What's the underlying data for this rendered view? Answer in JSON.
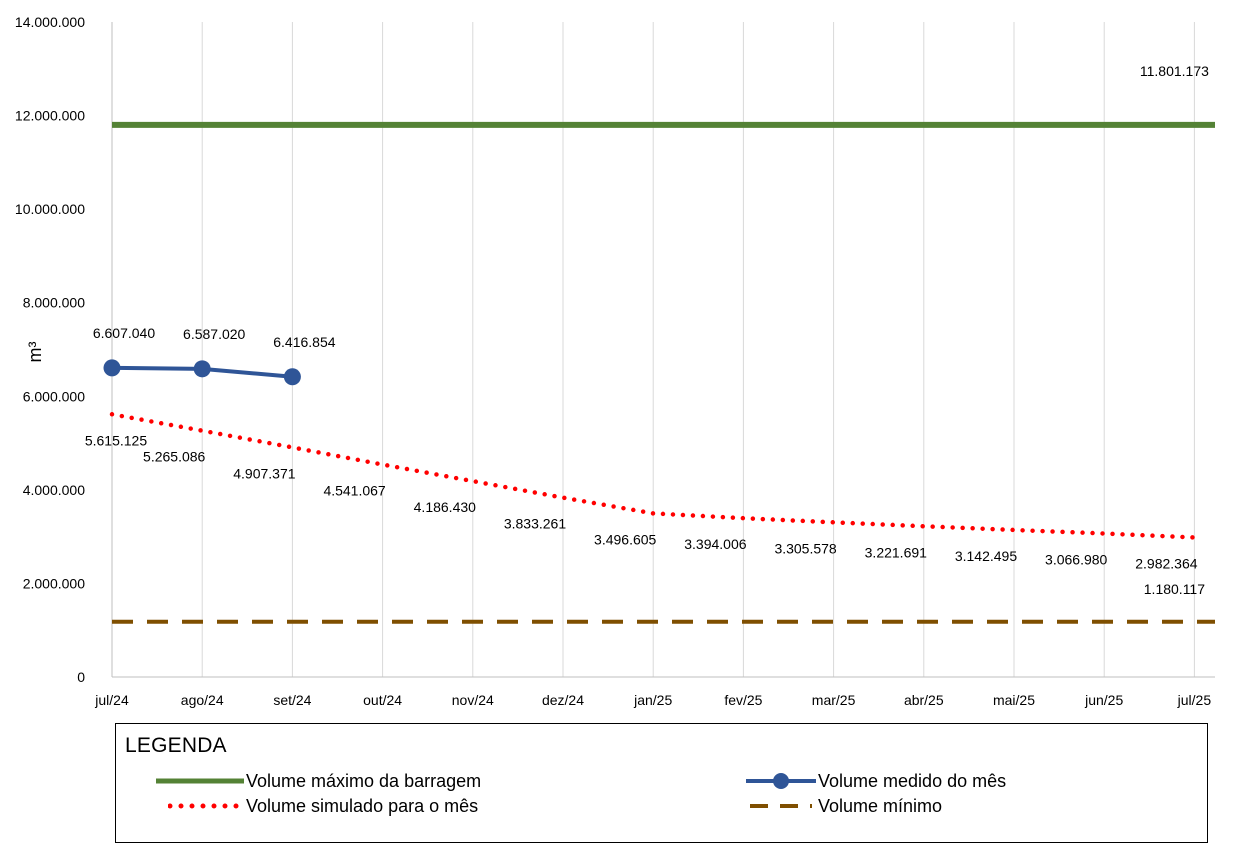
{
  "chart_data": {
    "type": "line",
    "title": "",
    "xlabel": "",
    "ylabel": "m³",
    "ylim": [
      0,
      14000000
    ],
    "yticks": [
      0,
      2000000,
      4000000,
      6000000,
      8000000,
      10000000,
      12000000,
      14000000
    ],
    "ytick_labels": [
      "0",
      "2.000.000",
      "4.000.000",
      "6.000.000",
      "8.000.000",
      "10.000.000",
      "12.000.000",
      "14.000.000"
    ],
    "categories": [
      "jul/24",
      "ago/24",
      "set/24",
      "out/24",
      "nov/24",
      "dez/24",
      "jan/25",
      "fev/25",
      "mar/25",
      "abr/25",
      "mai/25",
      "jun/25",
      "jul/25"
    ],
    "grid": "vertical",
    "series": [
      {
        "name": "Volume máximo da barragem",
        "style": "solid",
        "color": "#548235",
        "values": [
          11801173,
          11801173,
          11801173,
          11801173,
          11801173,
          11801173,
          11801173,
          11801173,
          11801173,
          11801173,
          11801173,
          11801173,
          11801173
        ],
        "labels": [
          "",
          "",
          "",
          "",
          "",
          "",
          "",
          "",
          "",
          "",
          "",
          "",
          "11.801.173"
        ]
      },
      {
        "name": "Volume medido do mês",
        "style": "solid-marker",
        "color": "#2F5597",
        "values": [
          6607040,
          6587020,
          6416854,
          null,
          null,
          null,
          null,
          null,
          null,
          null,
          null,
          null,
          null
        ],
        "labels": [
          "6.607.040",
          "6.587.020",
          "6.416.854",
          "",
          "",
          "",
          "",
          "",
          "",
          "",
          "",
          "",
          ""
        ]
      },
      {
        "name": "Volume simulado para o mês",
        "style": "dotted",
        "color": "#FF0000",
        "values": [
          5615125,
          5265086,
          4907371,
          4541067,
          4186430,
          3833261,
          3496605,
          3394006,
          3305578,
          3221691,
          3142495,
          3066980,
          2982364
        ],
        "labels": [
          "5.615.125",
          "5.265.086",
          "4.907.371",
          "4.541.067",
          "4.186.430",
          "3.833.261",
          "3.496.605",
          "3.394.006",
          "3.305.578",
          "3.221.691",
          "3.142.495",
          "3.066.980",
          "2.982.364"
        ]
      },
      {
        "name": "Volume mínimo",
        "style": "dashed",
        "color": "#7F4F00",
        "values": [
          1180117,
          1180117,
          1180117,
          1180117,
          1180117,
          1180117,
          1180117,
          1180117,
          1180117,
          1180117,
          1180117,
          1180117,
          1180117
        ],
        "labels": [
          "",
          "",
          "",
          "",
          "",
          "",
          "",
          "",
          "",
          "",
          "",
          "",
          "1.180.117"
        ]
      }
    ]
  },
  "legend": {
    "title": "LEGENDA",
    "items": [
      {
        "label": "Volume máximo da barragem"
      },
      {
        "label": "Volume medido do mês"
      },
      {
        "label": "Volume simulado para o mês"
      },
      {
        "label": "Volume mínimo"
      }
    ]
  }
}
